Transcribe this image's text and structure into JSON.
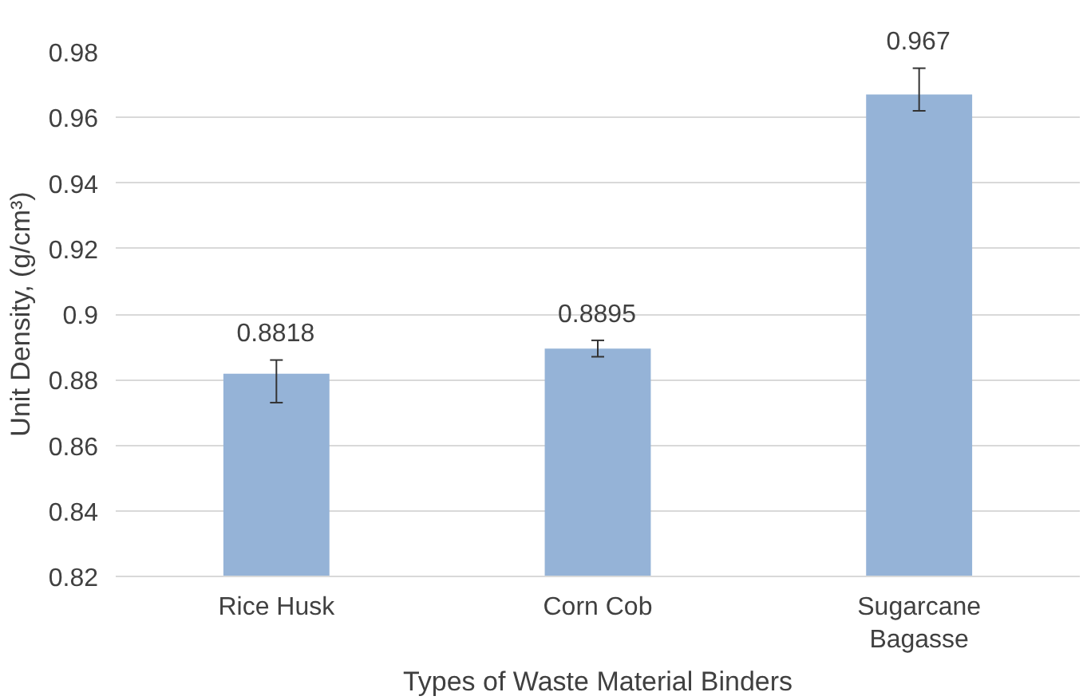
{
  "chart_data": {
    "type": "bar",
    "xlabel": "Types of Waste Material Binders",
    "ylabel": "Unit Density, (g/cm³)",
    "categories": [
      "Rice Husk",
      "Corn Cob",
      "Sugarcane Bagasse"
    ],
    "values": [
      0.8818,
      0.8895,
      0.967
    ],
    "color": "#95b3d7",
    "errors": [
      [
        0.873,
        0.886
      ],
      [
        0.887,
        0.892
      ],
      [
        0.962,
        0.975
      ]
    ],
    "ylim": [
      0.82,
      0.98
    ],
    "yticks": [
      0.82,
      0.84,
      0.86,
      0.88,
      0.9,
      0.92,
      0.94,
      0.96,
      0.98
    ],
    "grid": "y",
    "data_labels": true
  }
}
